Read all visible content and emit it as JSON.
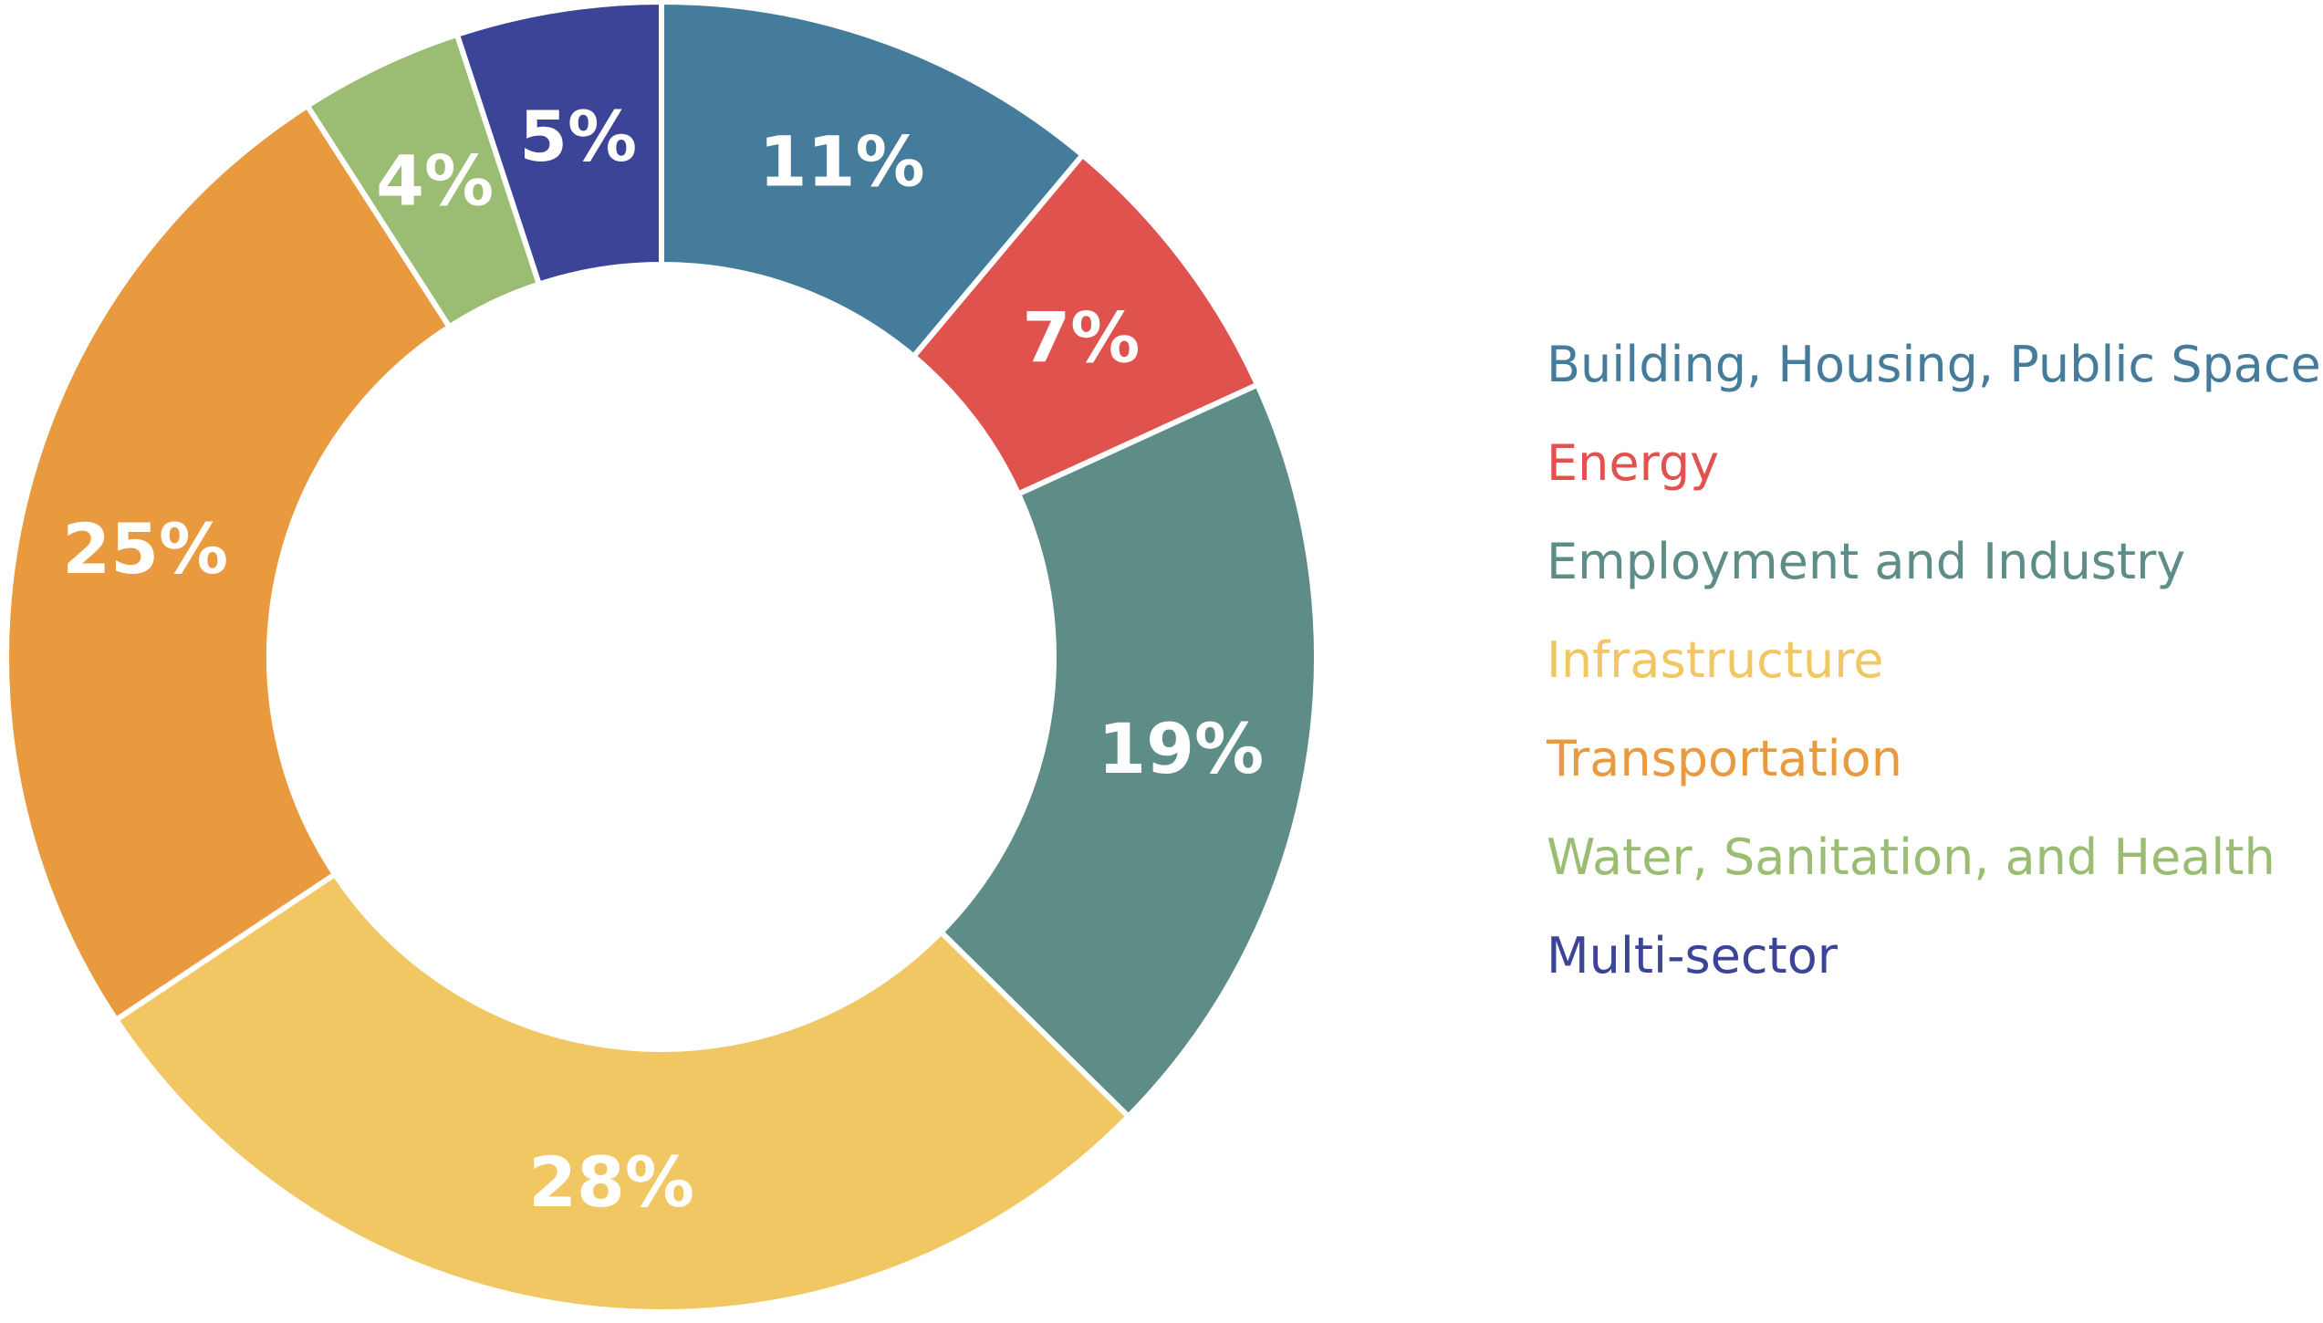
{
  "chart_data": {
    "type": "pie",
    "title": "",
    "donut": true,
    "categories": [
      "Building, Housing, Public Spaces",
      "Energy",
      "Employment and Industry",
      "Infrastructure",
      "Transportation",
      "Water, Sanitation, and Health",
      "Multi-sector"
    ],
    "values": [
      11,
      7,
      19,
      28,
      25,
      4,
      5
    ],
    "labels": [
      "11%",
      "7%",
      "19%",
      "28%",
      "25%",
      "4%",
      "5%"
    ],
    "colors": [
      "#457c9b",
      "#e0524d",
      "#5e8d88",
      "#f0c763",
      "#e99a3f",
      "#9bbc73",
      "#3b4496"
    ],
    "start_angle": "12 o'clock",
    "direction": "clockwise",
    "legend": {
      "placement": "right"
    }
  }
}
